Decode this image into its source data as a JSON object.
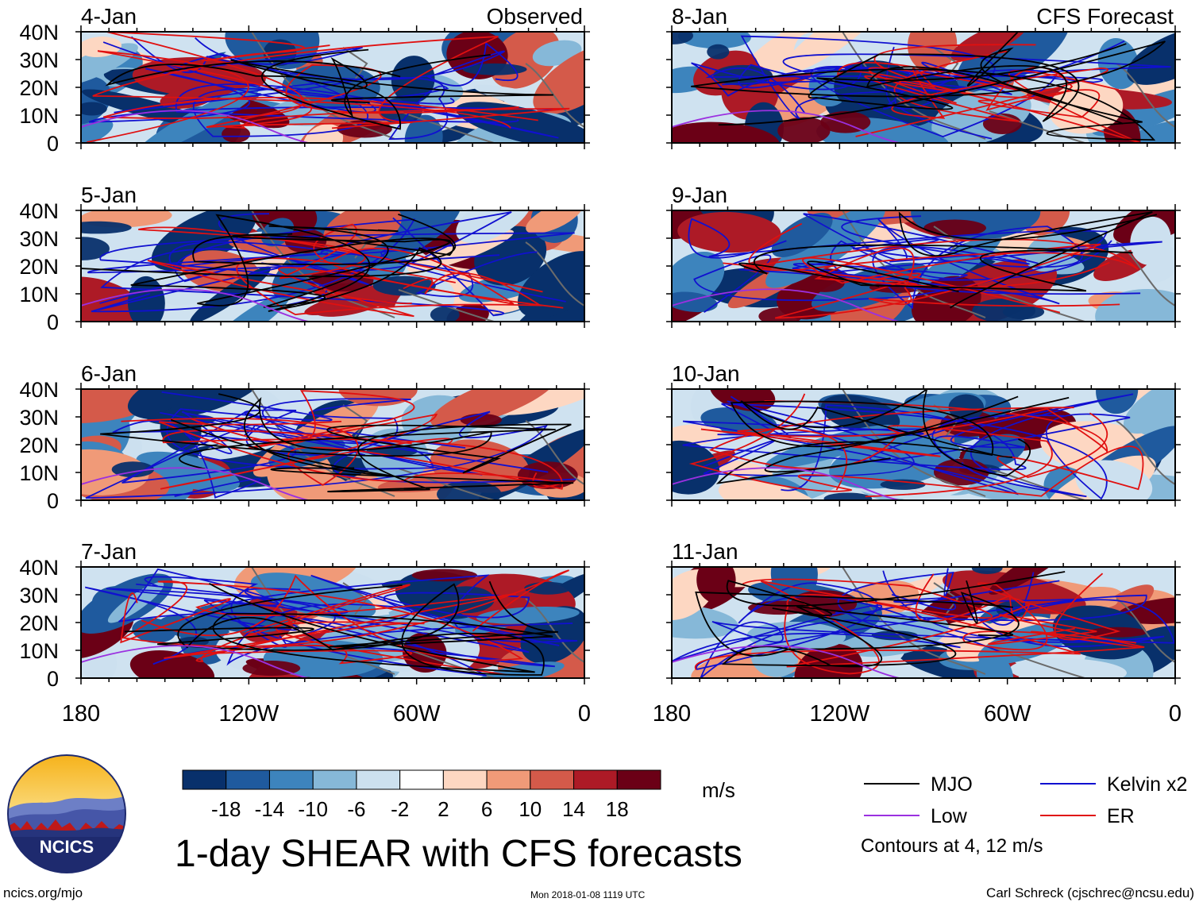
{
  "chart_data": {
    "type": "heatmap",
    "title": "1-day SHEAR with CFS forecasts",
    "units": "m/s",
    "column_titles": [
      "Observed",
      "CFS Forecast"
    ],
    "x_ticks": [
      "180",
      "120W",
      "60W",
      "0"
    ],
    "y_ticks": [
      "0",
      "10N",
      "20N",
      "30N",
      "40N"
    ],
    "xlim": [
      -180,
      0
    ],
    "ylim": [
      0,
      40
    ],
    "observed_days": [
      "4-Jan",
      "5-Jan",
      "6-Jan",
      "7-Jan"
    ],
    "forecast_days": [
      "8-Jan",
      "9-Jan",
      "10-Jan",
      "11-Jan"
    ],
    "colorbar": {
      "labels": [
        "-18",
        "-14",
        "-10",
        "-6",
        "-2",
        "2",
        "6",
        "10",
        "14",
        "18"
      ],
      "levels": [
        -18,
        -14,
        -10,
        -6,
        -2,
        2,
        6,
        10,
        14,
        18
      ],
      "colors": [
        "#08306b",
        "#1f5a9e",
        "#3d84bd",
        "#86b8d8",
        "#cce0ef",
        "#ffffff",
        "#fdd7c2",
        "#f09a78",
        "#d45a4a",
        "#ad1a26",
        "#6b0016"
      ]
    },
    "legend": [
      {
        "label": "MJO",
        "color": "#000000"
      },
      {
        "label": "Kelvin x2",
        "color": "#1010d0"
      },
      {
        "label": "Low",
        "color": "#9b30e0"
      },
      {
        "label": "ER",
        "color": "#e01010"
      }
    ],
    "contour_note": "Contours at 4, 12 m/s"
  },
  "footer": {
    "site": "ncics.org/mjo",
    "timestamp": "Mon 2018-01-08 1119 UTC",
    "author": "Carl Schreck (cjschrec@ncsu.edu)",
    "logo_text": "NCICS"
  }
}
